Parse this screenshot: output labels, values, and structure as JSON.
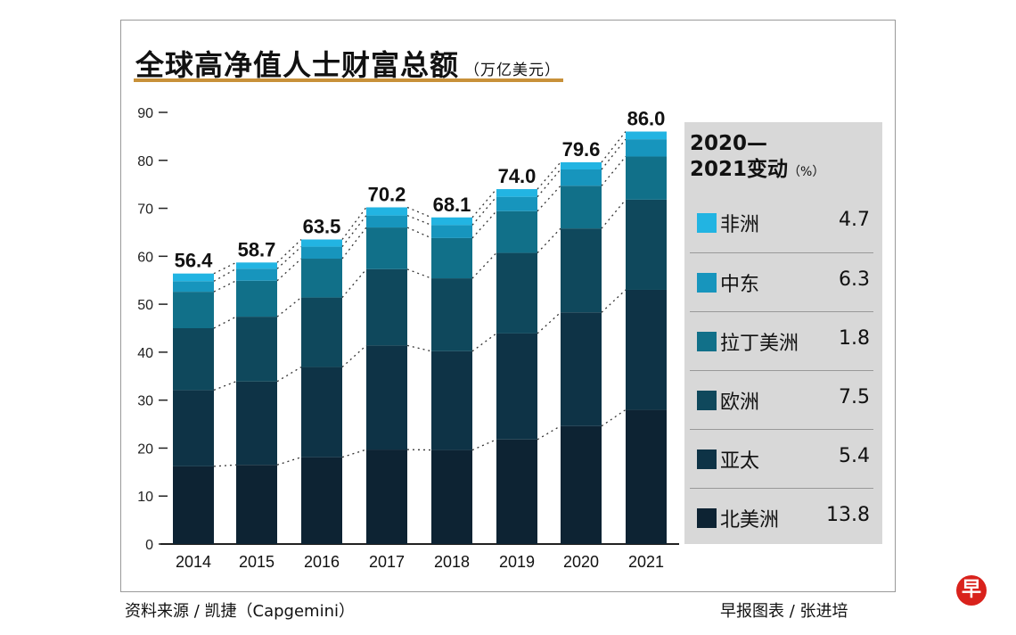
{
  "chart_data": {
    "type": "bar",
    "stacked": true,
    "title": "全球高净值人士财富总额",
    "unit": "（万亿美元）",
    "categories": [
      "2014",
      "2015",
      "2016",
      "2017",
      "2018",
      "2019",
      "2020",
      "2021"
    ],
    "totals": [
      "56.4",
      "58.7",
      "63.5",
      "70.2",
      "68.1",
      "74.0",
      "79.6",
      "86.0"
    ],
    "ylim": [
      0,
      90
    ],
    "yticks": [
      0,
      10,
      20,
      30,
      40,
      50,
      60,
      70,
      80,
      90
    ],
    "grid": false,
    "series": [
      {
        "name": "北美洲",
        "color": "#0d2333",
        "values": [
          16.2,
          16.5,
          18.1,
          19.7,
          19.6,
          21.8,
          24.6,
          28.0
        ]
      },
      {
        "name": "亚太",
        "color": "#0e3346",
        "values": [
          15.9,
          17.4,
          18.8,
          21.7,
          20.6,
          22.1,
          23.7,
          25.0
        ]
      },
      {
        "name": "欧洲",
        "color": "#0f485c",
        "values": [
          12.9,
          13.5,
          14.5,
          15.9,
          15.2,
          16.8,
          17.5,
          18.8
        ]
      },
      {
        "name": "拉丁美洲",
        "color": "#117089",
        "values": [
          7.6,
          7.5,
          8.1,
          8.7,
          8.4,
          8.7,
          8.9,
          9.0
        ]
      },
      {
        "name": "中东",
        "color": "#1795bd",
        "values": [
          2.2,
          2.5,
          2.5,
          2.5,
          2.7,
          3.0,
          3.4,
          3.6
        ]
      },
      {
        "name": "非洲",
        "color": "#22b4e2",
        "values": [
          1.6,
          1.3,
          1.5,
          1.7,
          1.6,
          1.6,
          1.5,
          1.6
        ]
      }
    ]
  },
  "legend": {
    "title_line1": "2020—",
    "title_line2": "2021变动",
    "title_unit": "（%）",
    "items": [
      {
        "label": "非洲",
        "value": "4.7",
        "color": "#22b4e2"
      },
      {
        "label": "中东",
        "value": "6.3",
        "color": "#1795bd"
      },
      {
        "label": "拉丁美洲",
        "value": "1.8",
        "color": "#117089"
      },
      {
        "label": "欧洲",
        "value": "7.5",
        "color": "#0f485c"
      },
      {
        "label": "亚太",
        "value": "5.4",
        "color": "#0e3346"
      },
      {
        "label": "北美洲",
        "value": "13.8",
        "color": "#0d2333"
      }
    ]
  },
  "footer": {
    "source": "资料来源 / 凯捷（Capgemini）",
    "credit": "早报图表 / 张进培",
    "logo": "早"
  }
}
